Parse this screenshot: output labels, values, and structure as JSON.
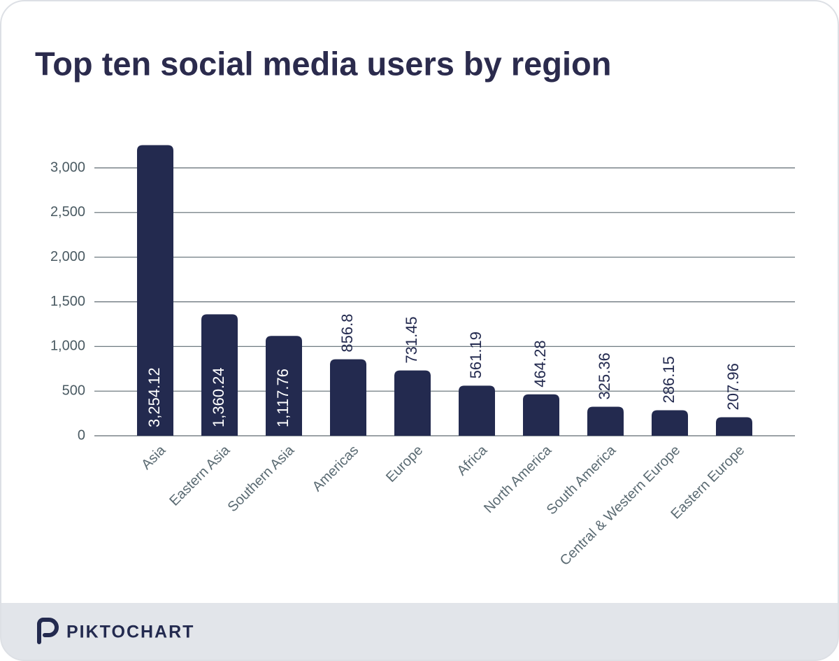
{
  "chart_data": {
    "type": "bar",
    "title": "Top ten social media users by region",
    "categories": [
      "Asia",
      "Eastern Asia",
      "Southern Asia",
      "Americas",
      "Europe",
      "Africa",
      "North America",
      "South America",
      "Central & Western Europe",
      "Eastern Europe"
    ],
    "values": [
      3254.12,
      1360.24,
      1117.76,
      856.8,
      731.45,
      561.19,
      464.28,
      325.36,
      286.15,
      207.96
    ],
    "value_labels": [
      "3,254.12",
      "1,360.24",
      "1,117.76",
      "856.8",
      "731.45",
      "561.19",
      "464.28",
      "325.36",
      "286.15",
      "207.96"
    ],
    "color": "#232a4f",
    "ylim": [
      0,
      3000
    ],
    "yticks": [
      0,
      500,
      {
        "value": 1000,
        "label": "1,000"
      },
      {
        "value": 1500,
        "label": "1,500"
      },
      {
        "value": 2000,
        "label": "2,000"
      },
      {
        "value": 2500,
        "label": "2,500"
      },
      {
        "value": 3000,
        "label": "3,000"
      }
    ],
    "grid": true
  },
  "footer": {
    "brand": "PIKTOCHART"
  }
}
